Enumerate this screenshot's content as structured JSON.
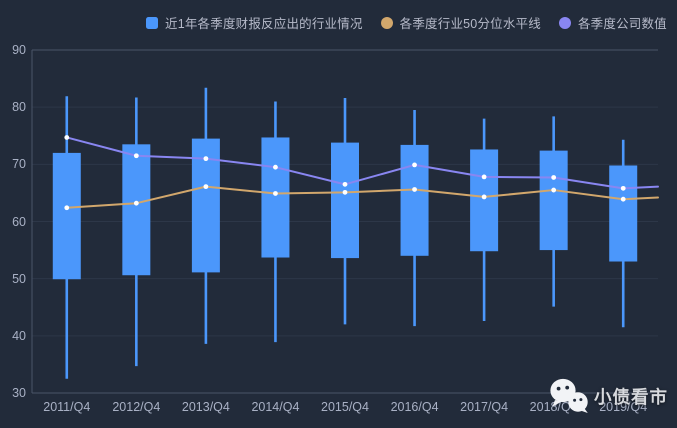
{
  "chart_data": {
    "type": "candlestick+line",
    "title": "",
    "categories": [
      "2011/Q4",
      "2012/Q4",
      "2013/Q4",
      "2014/Q4",
      "2015/Q4",
      "2016/Q4",
      "2017/Q4",
      "2018/Q4",
      "2019/Q4"
    ],
    "ylim": [
      30,
      90
    ],
    "y_ticks": [
      30,
      40,
      50,
      60,
      70,
      80,
      90
    ],
    "grid": true,
    "legend_position": "top",
    "series": [
      {
        "name": "近1年各季度财报反应出的行业情况",
        "type": "candlestick",
        "color": "#4b97fb",
        "values": [
          {
            "low": 32.5,
            "box_bottom": 49.9,
            "box_top": 72.0,
            "high": 81.9
          },
          {
            "low": 34.7,
            "box_bottom": 50.6,
            "box_top": 73.5,
            "high": 81.7
          },
          {
            "low": 38.6,
            "box_bottom": 51.1,
            "box_top": 74.5,
            "high": 83.4
          },
          {
            "low": 38.9,
            "box_bottom": 53.7,
            "box_top": 74.7,
            "high": 81.0
          },
          {
            "low": 42.0,
            "box_bottom": 53.6,
            "box_top": 73.8,
            "high": 81.6
          },
          {
            "low": 41.7,
            "box_bottom": 54.0,
            "box_top": 73.4,
            "high": 79.5
          },
          {
            "low": 42.6,
            "box_bottom": 54.8,
            "box_top": 72.6,
            "high": 78.0
          },
          {
            "low": 45.1,
            "box_bottom": 55.0,
            "box_top": 72.4,
            "high": 78.4
          },
          {
            "low": 41.5,
            "box_bottom": 53.0,
            "box_top": 69.8,
            "high": 74.3
          }
        ]
      },
      {
        "name": "各季度行业50分位水平线",
        "type": "line",
        "color": "#d2a76c",
        "values": [
          62.4,
          63.2,
          66.1,
          64.9,
          65.1,
          65.6,
          64.3,
          65.5,
          63.9
        ],
        "extends_to_right_edge": true,
        "right_edge_value": 64.2
      },
      {
        "name": "各季度公司数值",
        "type": "line",
        "color": "#8986f1",
        "values": [
          74.7,
          71.5,
          71.0,
          69.5,
          66.5,
          69.9,
          67.8,
          67.7,
          65.8
        ],
        "extends_to_right_edge": true,
        "right_edge_value": 66.1
      }
    ]
  },
  "watermark": {
    "text": "小债看市",
    "icon": "wechat-icon"
  },
  "colors": {
    "background": "#222b3a",
    "grid_line": "#2d3748",
    "axis_line": "#4a5468",
    "axis_label": "#a9b1c5",
    "legend_text": "#b6bac9",
    "candle": "#4b97fb",
    "line_percentile": "#d2a76c",
    "line_company": "#8986f1",
    "point_marker": "#ffffff"
  }
}
